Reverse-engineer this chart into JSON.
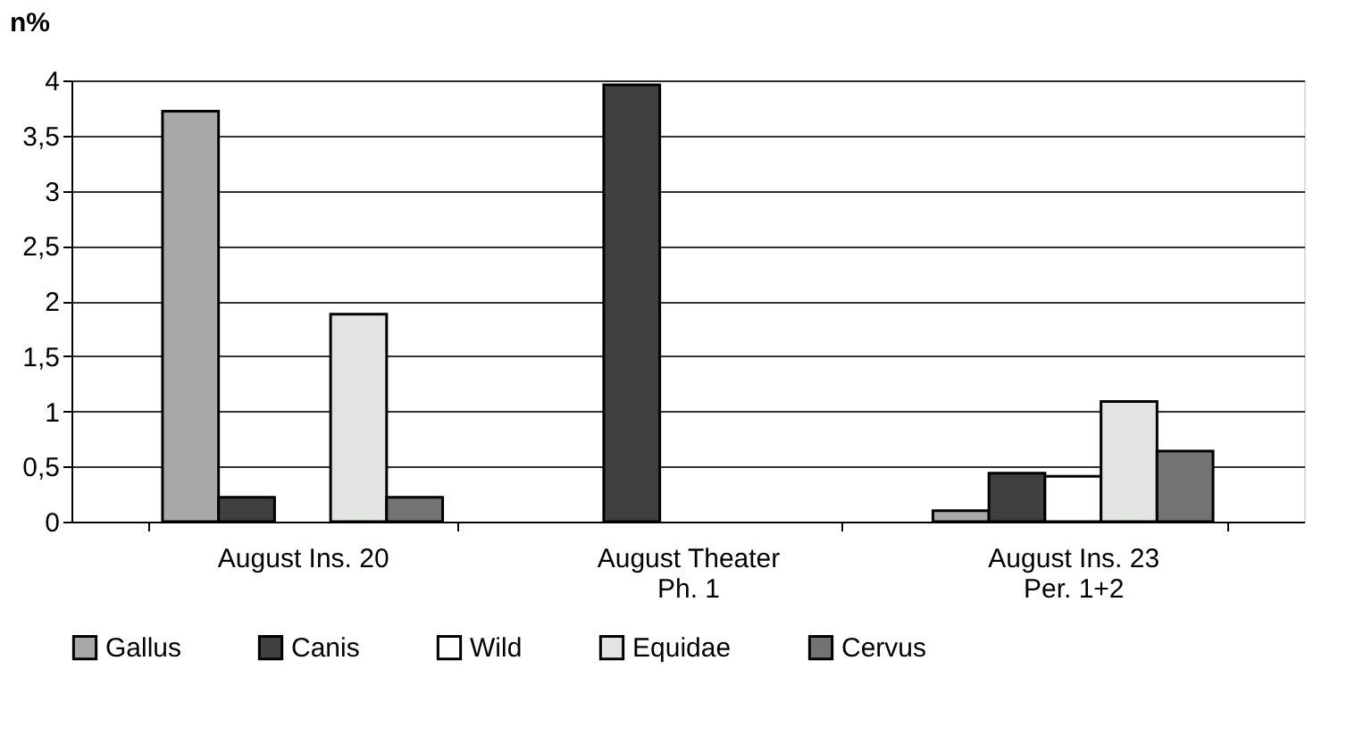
{
  "chart_data": {
    "type": "bar",
    "ylabel": "n%",
    "categories": [
      "August Ins. 20",
      "August Theater\nPh. 1",
      "August Ins. 23\nPer. 1+2"
    ],
    "series": [
      {
        "name": "Gallus",
        "color": "#a8a8a8",
        "values": [
          3.72,
          null,
          0.1
        ]
      },
      {
        "name": "Canis",
        "color": "#404040",
        "values": [
          0.22,
          3.96,
          0.44
        ]
      },
      {
        "name": "Wild",
        "color": "#ffffff",
        "values": [
          null,
          null,
          0.41
        ]
      },
      {
        "name": "Equidae",
        "color": "#e2e4e2",
        "values": [
          1.88,
          null,
          1.09
        ]
      },
      {
        "name": "Cervus",
        "color": "#737373",
        "values": [
          0.22,
          null,
          0.64
        ]
      }
    ],
    "ylim": [
      0,
      4
    ],
    "yticks": [
      0,
      {
        "value": 0.5,
        "label": "0,5"
      },
      1,
      {
        "value": 1.5,
        "label": "1,5"
      },
      2,
      {
        "value": 2.5,
        "label": "2,5"
      },
      3,
      {
        "value": 3.5,
        "label": "3,5"
      },
      4
    ],
    "grid": "y",
    "legend": "bottom"
  }
}
